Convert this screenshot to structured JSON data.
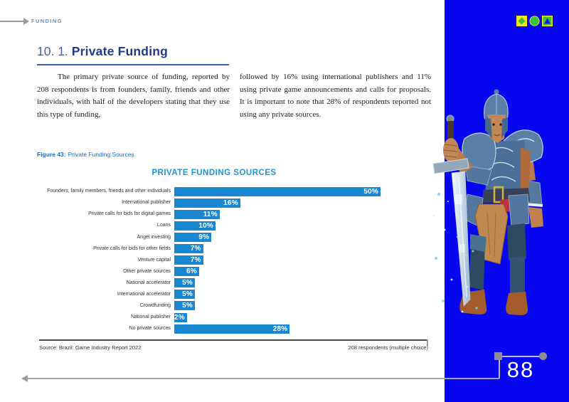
{
  "page": {
    "header_label": "FUNDING",
    "page_number": "88"
  },
  "heading": {
    "number": "10. 1.",
    "title": "Private Funding"
  },
  "body_text": {
    "left_column": "The primary private source of funding, reported by 208 respondents is from founders, family, friends and other individuals, with half of the developers stating that they use this type of funding,",
    "right_column": "followed by 16% using international publishers and 11% using private game announcements and calls for proposals. It is important to note that 28% of respondents reported not using any private sources."
  },
  "figure_caption": {
    "label": "Figure 43:",
    "text": "Private Funding Sources"
  },
  "chart_data": {
    "type": "bar",
    "orientation": "horizontal",
    "title": "PRIVATE FUNDING SOURCES",
    "categories": [
      "Founders, family members, friends and other individuals",
      "International publisher",
      "Private calls for bids for digital games",
      "Loans",
      "Angel investing",
      "Private calls for bids for other fields",
      "Venture capital",
      "Other private sources",
      "National accelerator",
      "International accelerator",
      "Crowdfunding",
      "National publisher",
      "No private sources"
    ],
    "values": [
      50,
      16,
      11,
      10,
      9,
      7,
      7,
      6,
      5,
      5,
      5,
      2,
      28
    ],
    "value_labels": [
      "50%",
      "16%",
      "11%",
      "10%",
      "9%",
      "7%",
      "7%",
      "6%",
      "5%",
      "5%",
      "5%",
      "2%",
      "28%"
    ],
    "unit": "%",
    "xlim": [
      0,
      60
    ],
    "grid": false,
    "legend": false,
    "bar_color": "#1a87d2",
    "value_label_color": "#ffffff"
  },
  "chart_footer": {
    "source": "Source: Brazil: Game Industry Report 2022",
    "note": "208 respondents (multiple choice)"
  },
  "sidebar": {
    "panel_color": "#0606ef",
    "icons": [
      "diamond-in-square-icon",
      "circle-icon",
      "triangle-in-square-icon"
    ],
    "illustration": "armored knight character holding a large sword"
  },
  "colors": {
    "accent_blue": "#1a87d2",
    "chart_title_blue": "#1f93d8",
    "caption_blue": "#1569cb",
    "heading_dark_blue": "#20398b",
    "heading_number_blue": "#3f62ae",
    "running_head_blue": "#5d8ec6",
    "panel_blue": "#0606ef",
    "icon_yellow": "#f0e422",
    "icon_green": "#3dc230",
    "line_gray": "#9a9a9a"
  }
}
